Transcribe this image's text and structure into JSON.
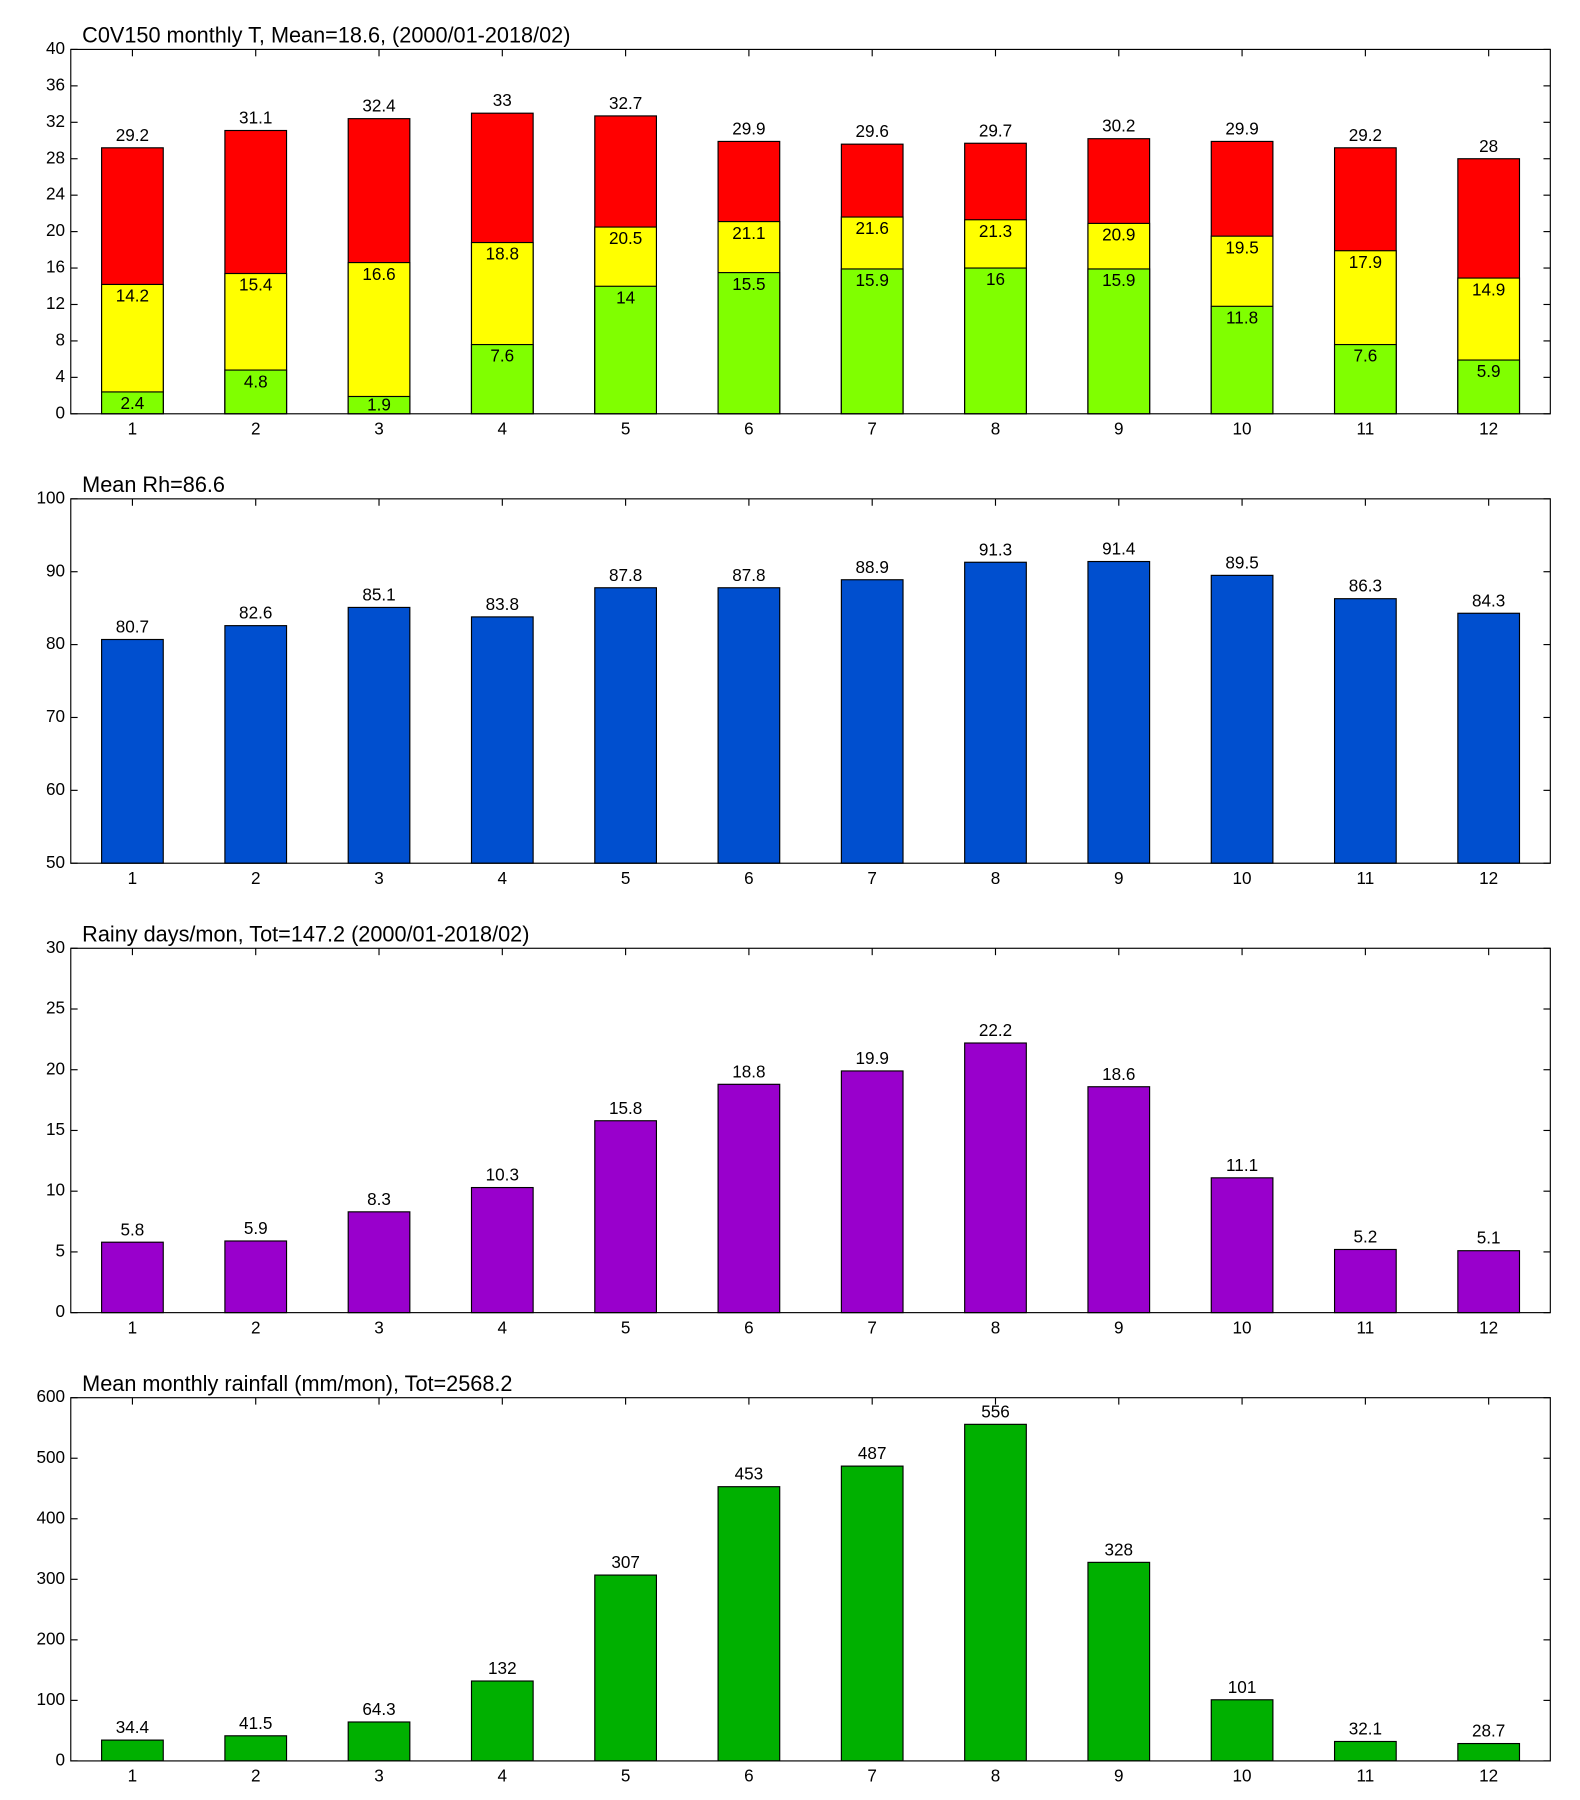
{
  "chart_data": [
    {
      "type": "bar",
      "title": "C0V150 monthly T, Mean=18.6, (2000/01-2018/02)",
      "categories": [
        "1",
        "2",
        "3",
        "4",
        "5",
        "6",
        "7",
        "8",
        "9",
        "10",
        "11",
        "12"
      ],
      "series": [
        {
          "color": "#ff0000",
          "values": [
            29.2,
            31.1,
            32.4,
            33,
            32.7,
            29.9,
            29.6,
            29.7,
            30.2,
            29.9,
            29.2,
            28
          ]
        },
        {
          "color": "#ffff00",
          "values": [
            14.2,
            15.4,
            16.6,
            18.8,
            20.5,
            21.1,
            21.6,
            21.3,
            20.9,
            19.5,
            17.9,
            14.9
          ]
        },
        {
          "color": "#80ff00",
          "values": [
            2.4,
            4.8,
            1.9,
            7.6,
            14,
            15.5,
            15.9,
            16,
            15.9,
            11.8,
            7.6,
            5.9
          ]
        }
      ],
      "ylim": [
        0,
        40
      ],
      "yticks": [
        0,
        4,
        8,
        12,
        16,
        20,
        24,
        28,
        32,
        36,
        40
      ]
    },
    {
      "type": "bar",
      "title": "Mean Rh=86.6",
      "categories": [
        "1",
        "2",
        "3",
        "4",
        "5",
        "6",
        "7",
        "8",
        "9",
        "10",
        "11",
        "12"
      ],
      "series": [
        {
          "color": "#004fcf",
          "values": [
            80.7,
            82.6,
            85.1,
            83.8,
            87.8,
            87.8,
            88.9,
            91.3,
            91.4,
            89.5,
            86.3,
            84.3
          ]
        }
      ],
      "ylim": [
        50,
        100
      ],
      "yticks": [
        50,
        60,
        70,
        80,
        90,
        100
      ]
    },
    {
      "type": "bar",
      "title": "Rainy days/mon, Tot=147.2 (2000/01-2018/02)",
      "categories": [
        "1",
        "2",
        "3",
        "4",
        "5",
        "6",
        "7",
        "8",
        "9",
        "10",
        "11",
        "12"
      ],
      "series": [
        {
          "color": "#9900cc",
          "values": [
            5.8,
            5.9,
            8.3,
            10.3,
            15.8,
            18.8,
            19.9,
            22.2,
            18.6,
            11.1,
            5.2,
            5.1
          ]
        }
      ],
      "ylim": [
        0,
        30
      ],
      "yticks": [
        0,
        5,
        10,
        15,
        20,
        25,
        30
      ]
    },
    {
      "type": "bar",
      "title": "Mean monthly rainfall (mm/mon), Tot=2568.2",
      "categories": [
        "1",
        "2",
        "3",
        "4",
        "5",
        "6",
        "7",
        "8",
        "9",
        "10",
        "11",
        "12"
      ],
      "series": [
        {
          "color": "#00b000",
          "values": [
            34.4,
            41.5,
            64.3,
            132,
            307,
            453,
            487,
            556,
            328,
            101,
            32.1,
            28.7
          ]
        }
      ],
      "ylim": [
        0,
        600
      ],
      "yticks": [
        0,
        100,
        200,
        300,
        400,
        500,
        600
      ]
    }
  ]
}
